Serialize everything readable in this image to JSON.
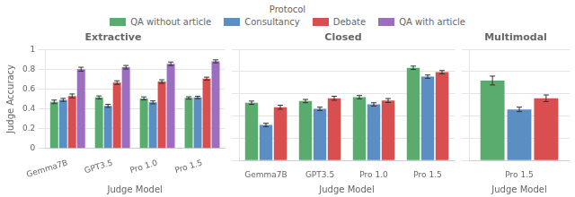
{
  "legend_title": "Protocol",
  "legend": "top",
  "chart_data": [
    {
      "type": "bar",
      "title": "Extractive",
      "xlabel": "Judge Model",
      "ylabel": "Judge Accuracy",
      "categories": [
        "Gemma7B",
        "GPT3.5",
        "Pro 1.0",
        "Pro 1.5"
      ],
      "series": [
        {
          "name": "QA without article",
          "color": "#5aab6e",
          "values": [
            0.47,
            0.515,
            0.505,
            0.51
          ],
          "errors": [
            0.018,
            0.015,
            0.015,
            0.012
          ]
        },
        {
          "name": "Consultancy",
          "color": "#5b8fc4",
          "values": [
            0.49,
            0.43,
            0.465,
            0.515
          ],
          "errors": [
            0.015,
            0.015,
            0.015,
            0.012
          ]
        },
        {
          "name": "Debate",
          "color": "#d94f4f",
          "values": [
            0.53,
            0.665,
            0.675,
            0.705
          ],
          "errors": [
            0.02,
            0.018,
            0.018,
            0.015
          ]
        },
        {
          "name": "QA with article",
          "color": "#9b6ec0",
          "values": [
            0.8,
            0.82,
            0.855,
            0.88
          ],
          "errors": [
            0.02,
            0.018,
            0.018,
            0.015
          ]
        }
      ],
      "ylim": [
        0,
        1.0
      ],
      "yticks": [
        0,
        0.2,
        0.4,
        0.6,
        0.8,
        1
      ],
      "grid": true
    },
    {
      "type": "bar",
      "title": "Closed",
      "xlabel": "Judge Model",
      "categories": [
        "Gemma7B",
        "GPT3.5",
        "Pro 1.0",
        "Pro 1.5"
      ],
      "series": [
        {
          "name": "QA without article",
          "color": "#5aab6e",
          "values": [
            0.52,
            0.535,
            0.57,
            0.835
          ],
          "errors": [
            0.015,
            0.015,
            0.015,
            0.015
          ]
        },
        {
          "name": "Consultancy",
          "color": "#5b8fc4",
          "values": [
            0.32,
            0.465,
            0.505,
            0.755
          ],
          "errors": [
            0.015,
            0.015,
            0.015,
            0.015
          ]
        },
        {
          "name": "Debate",
          "color": "#d94f4f",
          "values": [
            0.48,
            0.56,
            0.54,
            0.795
          ],
          "errors": [
            0.018,
            0.018,
            0.018,
            0.015
          ]
        }
      ],
      "ylim": [
        0,
        1.0
      ],
      "yticks": [
        0,
        0.2,
        0.4,
        0.6,
        0.8,
        1
      ],
      "grid": true,
      "tick_labels": "x"
    },
    {
      "type": "bar",
      "title": "Multimodal",
      "xlabel": "Judge Model",
      "categories": [
        "Pro 1.5"
      ],
      "series": [
        {
          "name": "QA without article",
          "color": "#5aab6e",
          "values": [
            0.72
          ],
          "errors": [
            0.04
          ]
        },
        {
          "name": "Consultancy",
          "color": "#5b8fc4",
          "values": [
            0.46
          ],
          "errors": [
            0.02
          ]
        },
        {
          "name": "Debate",
          "color": "#d94f4f",
          "values": [
            0.56
          ],
          "errors": [
            0.03
          ]
        }
      ],
      "ylim": [
        0,
        1.0
      ],
      "yticks": [
        0,
        0.2,
        0.4,
        0.6,
        0.8,
        1
      ],
      "grid": true,
      "tick_labels": "x"
    }
  ]
}
